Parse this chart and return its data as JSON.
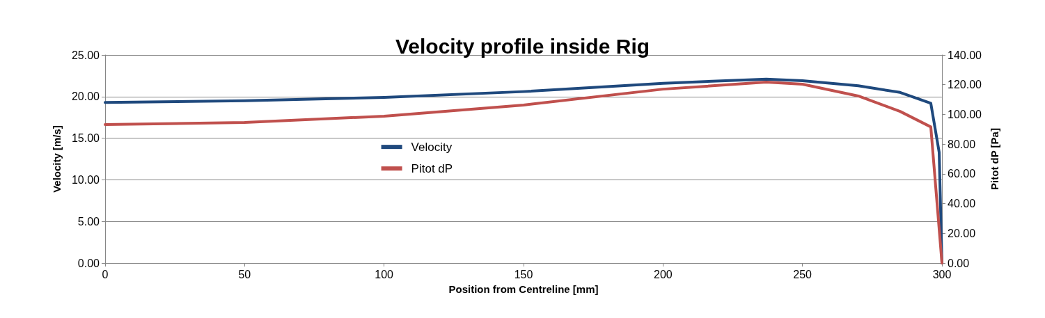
{
  "chart_data": {
    "type": "line",
    "title": "Velocity profile inside Rig",
    "xlabel": "Position from Centreline [mm]",
    "ylabel": "Velocity [m/s]",
    "y2label": "Pitot dP [Pa]",
    "xlim": [
      0,
      300
    ],
    "xticks": [
      0,
      50,
      100,
      150,
      200,
      250,
      300
    ],
    "ylim": [
      0,
      25
    ],
    "yticks": [
      {
        "value": 0,
        "label": "0.00"
      },
      {
        "value": 5,
        "label": "5.00"
      },
      {
        "value": 10,
        "label": "10.00"
      },
      {
        "value": 15,
        "label": "15.00"
      },
      {
        "value": 20,
        "label": "20.00"
      },
      {
        "value": 25,
        "label": "25.00"
      }
    ],
    "y2lim": [
      0,
      140
    ],
    "y2ticks": [
      {
        "value": 0,
        "label": "0.00"
      },
      {
        "value": 20,
        "label": "20.00"
      },
      {
        "value": 40,
        "label": "40.00"
      },
      {
        "value": 60,
        "label": "60.00"
      },
      {
        "value": 80,
        "label": "80.00"
      },
      {
        "value": 100,
        "label": "100.00"
      },
      {
        "value": 120,
        "label": "120.00"
      },
      {
        "value": 140,
        "label": "140.00"
      }
    ],
    "grid": "y",
    "legend": "center",
    "marker": "none",
    "line_style": "solid",
    "series": [
      {
        "name": "Velocity",
        "color": "#1f497d",
        "x": [
          0,
          50,
          100,
          150,
          200,
          237,
          250,
          270,
          285,
          296,
          299,
          300
        ],
        "values": [
          19.3,
          19.5,
          19.9,
          20.6,
          21.6,
          22.1,
          21.9,
          21.3,
          20.5,
          19.2,
          13.3,
          0
        ]
      },
      {
        "name": "Pitot dP",
        "color": "#c0504d",
        "axis": "y2",
        "x": [
          0,
          50,
          100,
          150,
          200,
          237,
          250,
          270,
          285,
          296,
          300
        ],
        "values": [
          93.2,
          94.6,
          98.8,
          106.3,
          117,
          121.7,
          120.3,
          112.4,
          102,
          91.6,
          0
        ]
      }
    ]
  }
}
